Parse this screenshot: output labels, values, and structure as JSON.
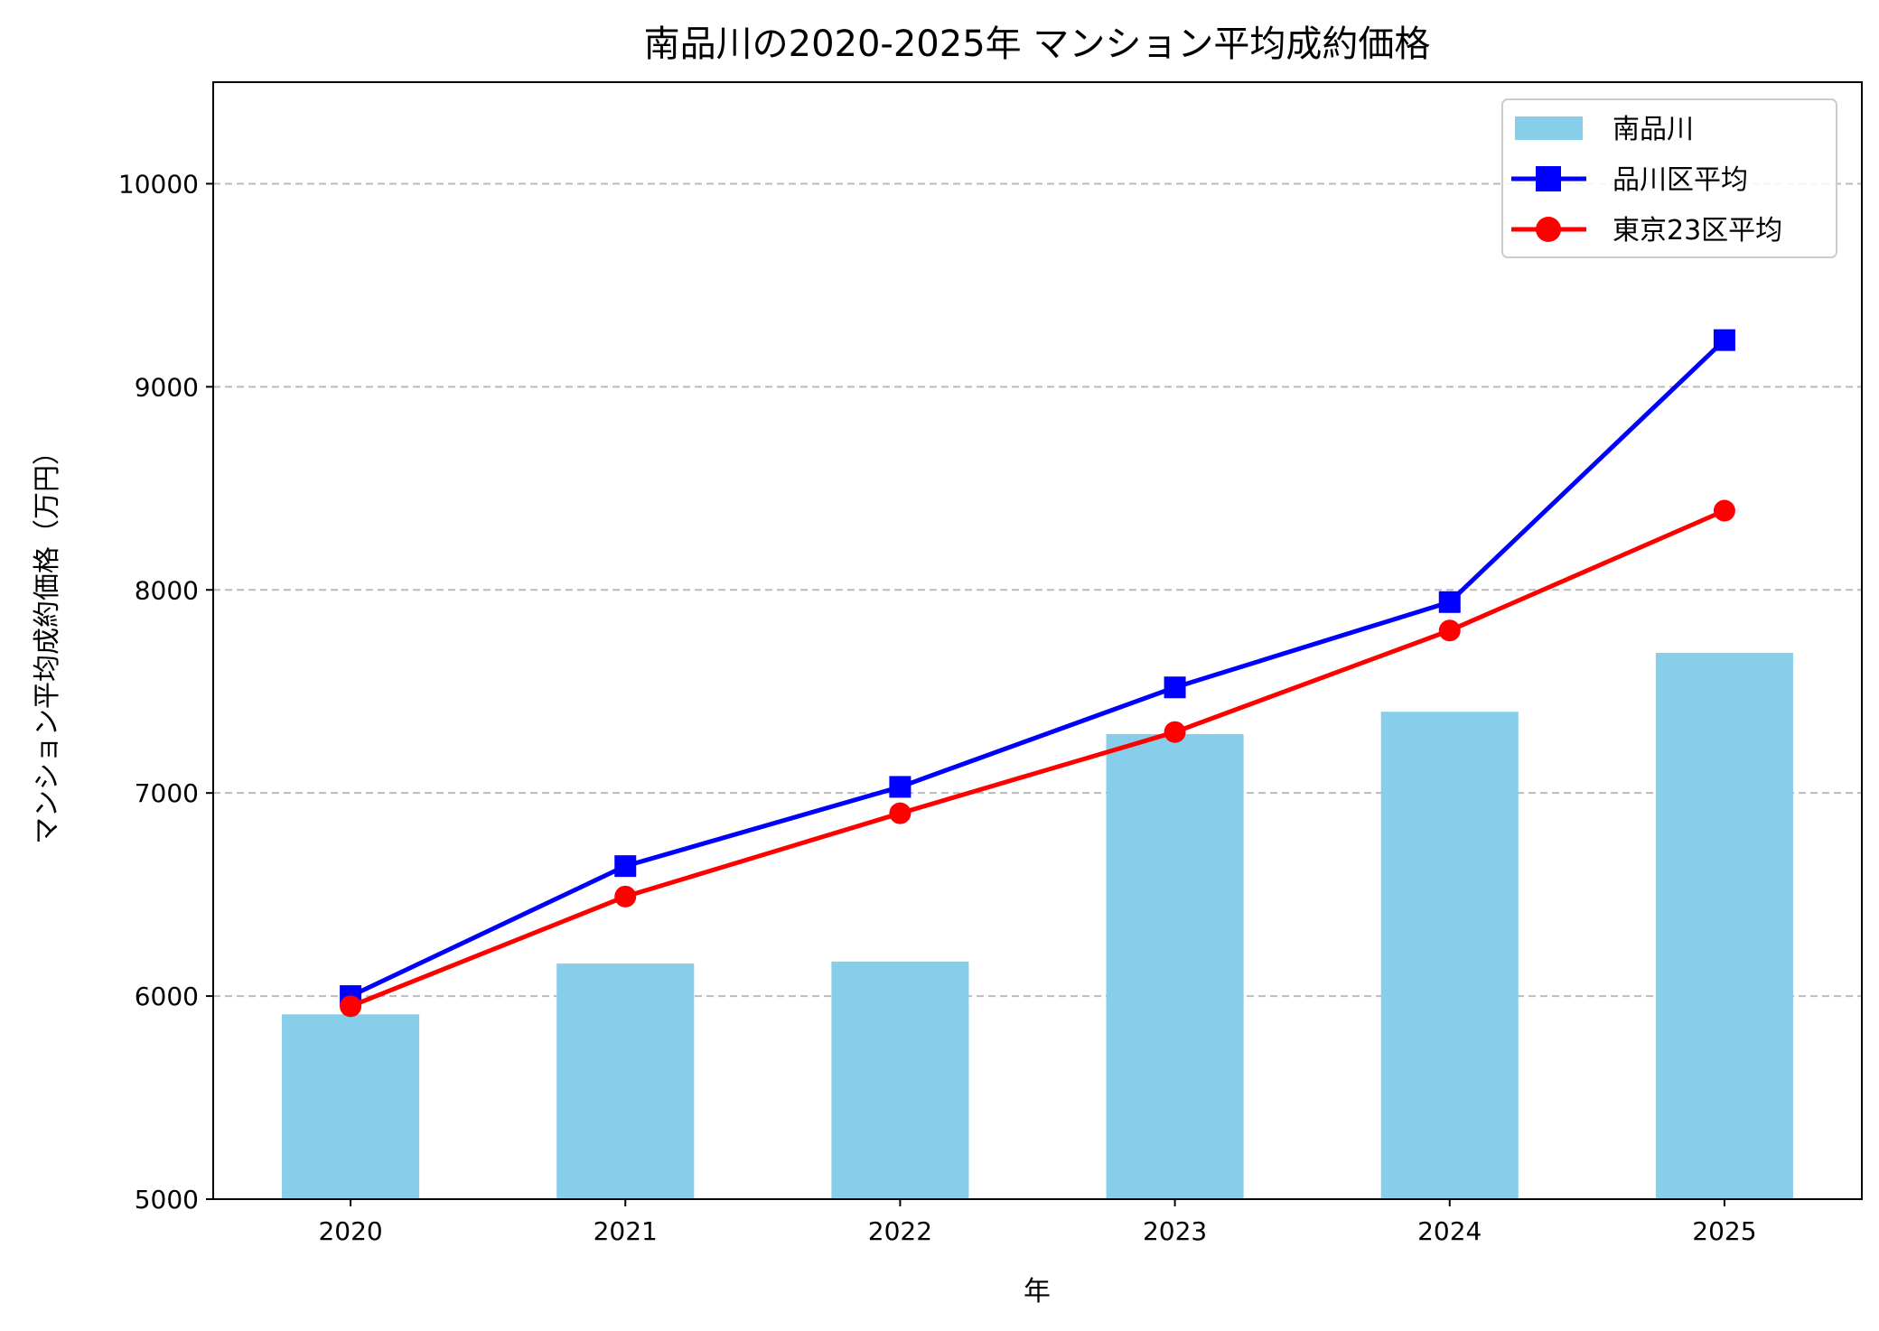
{
  "chart_data": {
    "type": "bar+line",
    "title": "南品川の2020-2025年 マンション平均成約価格",
    "xlabel": "年",
    "ylabel": "マンション平均成約価格（万円）",
    "categories": [
      "2020",
      "2021",
      "2022",
      "2023",
      "2024",
      "2025"
    ],
    "ylim": [
      5000,
      10500
    ],
    "yticks": [
      5000,
      6000,
      7000,
      8000,
      9000,
      10000
    ],
    "grid": "y-dashed",
    "legend_position": "top-right",
    "series": [
      {
        "name": "南品川",
        "kind": "bar",
        "color": "#87CEEB",
        "values": [
          5910,
          6160,
          6170,
          7290,
          7400,
          7690
        ]
      },
      {
        "name": "品川区平均",
        "kind": "line",
        "marker": "square",
        "color": "#0000FF",
        "values": [
          6000,
          6640,
          7030,
          7520,
          7940,
          9230
        ]
      },
      {
        "name": "東京23区平均",
        "kind": "line",
        "marker": "circle",
        "color": "#FF0000",
        "values": [
          5950,
          6490,
          6900,
          7300,
          7800,
          8390
        ]
      }
    ]
  }
}
